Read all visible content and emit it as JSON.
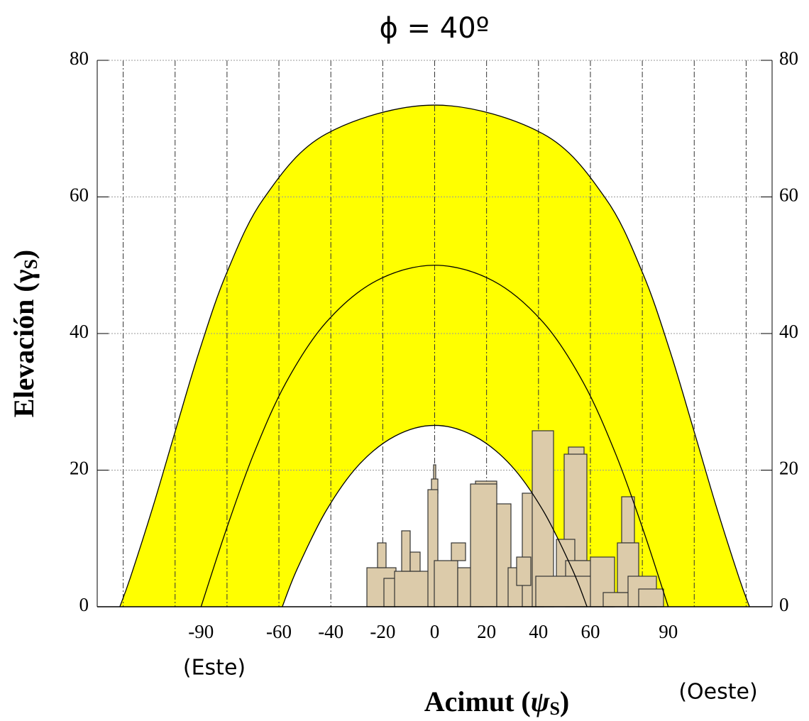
{
  "chart_data": {
    "type": "line",
    "title": "ϕ = 40º",
    "xlabel": [
      "Acimut (",
      "ψ",
      "S",
      ")"
    ],
    "ylabel": [
      "Elevación (",
      "γ",
      "S",
      ")"
    ],
    "annotations": [
      "(Este)",
      "(Oeste)"
    ],
    "xlim": [
      -130,
      130
    ],
    "ylim": [
      0,
      80
    ],
    "xticks": [
      -90,
      -60,
      -40,
      -20,
      0,
      20,
      40,
      60,
      90
    ],
    "x_grid": [
      -120,
      -100,
      -80,
      -60,
      -40,
      -20,
      0,
      20,
      40,
      60,
      80,
      100,
      120
    ],
    "yticks": [
      0,
      20,
      40,
      60,
      80
    ],
    "grid": true,
    "fill_color": "#ffff00",
    "series": [
      {
        "color": "#000000",
        "x": [
          -121.3,
          -117.3,
          -108.4,
          -99.7,
          -90.7,
          -80.2,
          -65.8,
          -41.9,
          0,
          41.9,
          65.8,
          80.2,
          90.7,
          99.7,
          108.4,
          117.3,
          121.3
        ],
        "values": [
          0,
          4.2,
          14.8,
          26.0,
          37.4,
          48.8,
          59.8,
          69.2,
          73.45,
          69.2,
          59.8,
          48.8,
          37.4,
          26.0,
          14.8,
          4.2,
          0
        ]
      },
      {
        "color": "#000000",
        "x": [
          -90,
          -80.2,
          -69.6,
          -57.3,
          -41.9,
          -22.6,
          0,
          22.6,
          41.9,
          57.3,
          69.6,
          80.2,
          90
        ],
        "values": [
          0,
          11.4,
          22.5,
          32.8,
          41.6,
          47.7,
          50,
          47.7,
          41.6,
          32.8,
          22.5,
          11.4,
          0
        ]
      },
      {
        "color": "#000000",
        "x": [
          -58.7,
          -53.0,
          -41.9,
          -29.4,
          -15.2,
          0,
          15.2,
          29.4,
          41.9,
          53.0,
          58.7
        ],
        "values": [
          0,
          5.5,
          14.0,
          20.7,
          25.0,
          26.55,
          25.0,
          20.7,
          14.0,
          5.5,
          0
        ]
      }
    ]
  }
}
